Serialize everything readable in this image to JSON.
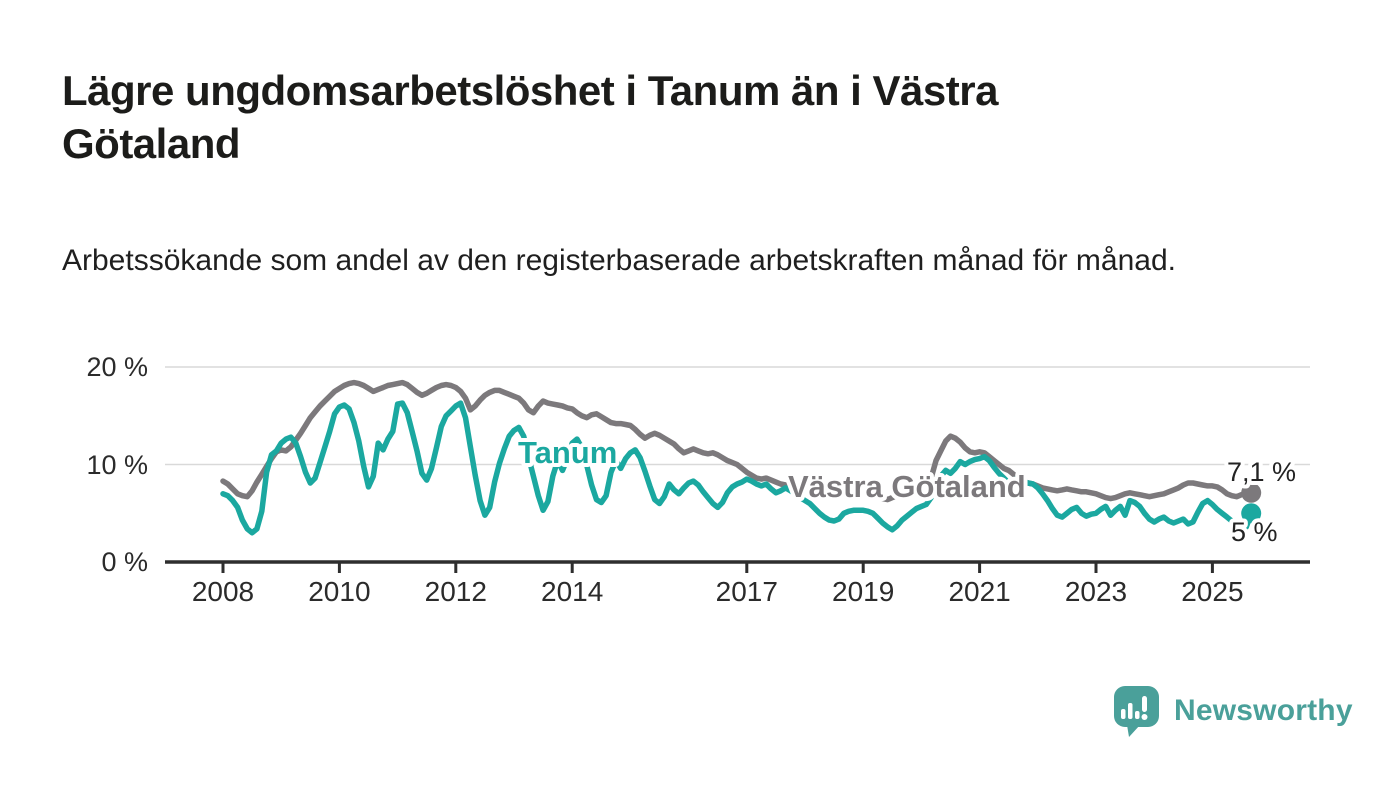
{
  "header": {
    "title": "Lägre ungdomsarbetslöshet i Tanum än i Västra Götaland",
    "subtitle": "Arbetssökande som andel av den registerbaserade arbetskraften månad för månad."
  },
  "chart_data": {
    "type": "line",
    "title": "Lägre ungdomsarbetslöshet i Tanum än i Västra Götaland",
    "subtitle": "Arbetssökande som andel av den registerbaserade arbetskraften månad för månad.",
    "unit": "%",
    "frequency": "monthly",
    "start": "2008-01",
    "end": "2025-09",
    "ylim": [
      0,
      20.6
    ],
    "grid": "horizontal",
    "legend_position": "inline-labels",
    "y_ticks": [
      {
        "value": 0,
        "label": "0 %"
      },
      {
        "value": 10,
        "label": "10 %"
      },
      {
        "value": 20,
        "label": "20 %"
      }
    ],
    "x_ticks": [
      {
        "year": 2008,
        "label": "2008"
      },
      {
        "year": 2010,
        "label": "2010"
      },
      {
        "year": 2012,
        "label": "2012"
      },
      {
        "year": 2014,
        "label": "2014"
      },
      {
        "year": 2017,
        "label": "2017"
      },
      {
        "year": 2019,
        "label": "2019"
      },
      {
        "year": 2021,
        "label": "2021"
      },
      {
        "year": 2023,
        "label": "2023"
      },
      {
        "year": 2025,
        "label": "2025"
      }
    ],
    "series": [
      {
        "name": "Tanum",
        "color": "#1ba8a0",
        "end_label": "5 %",
        "end_value": 5.0,
        "values": [
          7.0,
          6.8,
          6.3,
          5.6,
          4.3,
          3.4,
          3.0,
          3.4,
          5.2,
          9.2,
          11.0,
          11.4,
          12.2,
          12.6,
          12.8,
          12.2,
          10.8,
          9.2,
          8.1,
          8.6,
          10.2,
          11.8,
          13.4,
          15.2,
          15.9,
          16.1,
          15.7,
          14.3,
          12.4,
          9.8,
          7.7,
          8.8,
          12.2,
          11.5,
          12.6,
          13.4,
          16.2,
          16.3,
          15.3,
          13.4,
          11.4,
          9.1,
          8.4,
          9.6,
          11.7,
          13.9,
          15.0,
          15.5,
          16.0,
          16.3,
          14.8,
          11.8,
          8.9,
          6.3,
          4.8,
          5.6,
          8.2,
          10.1,
          11.6,
          12.9,
          13.5,
          13.8,
          12.9,
          10.8,
          8.8,
          6.8,
          5.3,
          6.2,
          8.8,
          10.4,
          9.4,
          10.6,
          12.2,
          12.6,
          11.7,
          9.9,
          7.9,
          6.4,
          6.1,
          6.8,
          9.2,
          10.4,
          9.6,
          10.6,
          11.2,
          11.5,
          10.7,
          9.3,
          7.8,
          6.4,
          6.0,
          6.7,
          8.0,
          7.4,
          7.0,
          7.6,
          8.1,
          8.3,
          7.9,
          7.2,
          6.6,
          6.0,
          5.6,
          6.1,
          7.1,
          7.7,
          8.0,
          8.2,
          8.5,
          8.3,
          8.0,
          7.8,
          8.0,
          7.5,
          7.1,
          7.3,
          7.6,
          7.3,
          7.0,
          6.6,
          6.3,
          6.0,
          5.5,
          5.0,
          4.6,
          4.3,
          4.2,
          4.4,
          5.0,
          5.2,
          5.3,
          5.3,
          5.3,
          5.2,
          5.0,
          4.5,
          4.0,
          3.6,
          3.3,
          3.7,
          4.3,
          4.7,
          5.1,
          5.5,
          5.7,
          5.9,
          6.6,
          8.0,
          8.8,
          9.4,
          9.1,
          9.6,
          10.3,
          10.0,
          10.3,
          10.5,
          10.6,
          10.8,
          10.4,
          9.7,
          9.1,
          8.6,
          8.1,
          8.4,
          8.6,
          8.3,
          8.1,
          8.0,
          7.6,
          7.0,
          6.3,
          5.5,
          4.8,
          4.6,
          5.0,
          5.4,
          5.6,
          5.0,
          4.7,
          4.9,
          5.0,
          5.4,
          5.7,
          4.8,
          5.3,
          5.7,
          4.8,
          6.3,
          6.1,
          5.7,
          5.0,
          4.4,
          4.1,
          4.4,
          4.6,
          4.2,
          4.0,
          4.2,
          4.4,
          3.9,
          4.1,
          5.1,
          6.0,
          6.3,
          5.9,
          5.4,
          5.0,
          4.6,
          4.2,
          3.8,
          3.5,
          3.6,
          5.0
        ]
      },
      {
        "name": "Västra Götaland",
        "color": "#7c797c",
        "end_label": "7,1 %",
        "end_value": 7.1,
        "values": [
          8.3,
          8.0,
          7.5,
          7.0,
          6.8,
          6.7,
          7.3,
          8.2,
          9.0,
          9.8,
          10.6,
          11.3,
          11.5,
          11.4,
          11.8,
          12.5,
          13.2,
          14.0,
          14.8,
          15.4,
          16.0,
          16.5,
          17.0,
          17.5,
          17.8,
          18.1,
          18.3,
          18.4,
          18.3,
          18.1,
          17.8,
          17.5,
          17.7,
          17.9,
          18.1,
          18.2,
          18.3,
          18.4,
          18.2,
          17.8,
          17.4,
          17.1,
          17.3,
          17.6,
          17.9,
          18.1,
          18.2,
          18.1,
          17.9,
          17.5,
          16.8,
          15.6,
          16.0,
          16.6,
          17.1,
          17.4,
          17.6,
          17.6,
          17.4,
          17.2,
          17.0,
          16.8,
          16.3,
          15.6,
          15.3,
          16.0,
          16.5,
          16.3,
          16.2,
          16.1,
          16.0,
          15.8,
          15.7,
          15.3,
          15.0,
          14.8,
          15.1,
          15.2,
          14.9,
          14.6,
          14.3,
          14.2,
          14.2,
          14.1,
          14.0,
          13.6,
          13.1,
          12.7,
          13.0,
          13.2,
          13.0,
          12.7,
          12.4,
          12.1,
          11.6,
          11.2,
          11.4,
          11.6,
          11.4,
          11.2,
          11.1,
          11.2,
          11.0,
          10.7,
          10.4,
          10.2,
          10.0,
          9.6,
          9.2,
          8.9,
          8.6,
          8.5,
          8.6,
          8.4,
          8.2,
          8.0,
          7.9,
          7.8,
          7.8,
          7.9,
          7.8,
          7.6,
          7.5,
          7.4,
          7.3,
          7.4,
          7.5,
          7.4,
          7.2,
          7.1,
          7.0,
          7.0,
          7.0,
          6.9,
          6.8,
          6.6,
          6.5,
          6.4,
          6.6,
          6.8,
          7.0,
          7.1,
          7.2,
          7.3,
          7.5,
          7.7,
          8.6,
          10.4,
          11.4,
          12.4,
          12.9,
          12.7,
          12.3,
          11.7,
          11.3,
          11.2,
          11.3,
          11.2,
          10.8,
          10.4,
          10.0,
          9.6,
          9.4,
          9.0,
          8.6,
          8.3,
          8.1,
          8.0,
          7.8,
          7.6,
          7.5,
          7.4,
          7.3,
          7.4,
          7.5,
          7.4,
          7.3,
          7.2,
          7.2,
          7.1,
          7.0,
          6.8,
          6.6,
          6.5,
          6.6,
          6.8,
          7.0,
          7.1,
          7.0,
          6.9,
          6.8,
          6.7,
          6.8,
          6.9,
          7.0,
          7.2,
          7.4,
          7.6,
          7.9,
          8.1,
          8.1,
          8.0,
          7.9,
          7.8,
          7.8,
          7.7,
          7.4,
          7.0,
          6.8,
          6.7,
          6.9,
          7.0,
          7.1
        ]
      }
    ]
  },
  "footer": {
    "brand": "Newsworthy",
    "logo_color": "#4aa09a"
  }
}
